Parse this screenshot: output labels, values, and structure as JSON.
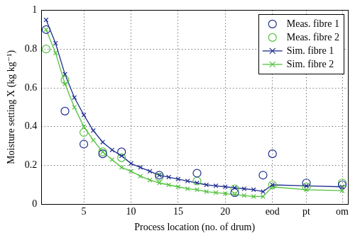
{
  "chart_data": {
    "type": "line",
    "x_label": "Process location (no. of drum)",
    "y_label": "Moisture setting X (kg kg⁻¹)",
    "x": [
      1,
      2,
      3,
      4,
      5,
      6,
      7,
      8,
      9,
      10,
      11,
      12,
      13,
      14,
      15,
      16,
      17,
      18,
      19,
      20,
      21,
      22,
      23,
      24,
      25,
      28.6,
      32.4
    ],
    "series": [
      {
        "name": "Meas. fibre 1",
        "color": "#1f2e8f",
        "type": "scatter",
        "marker": "circle",
        "values": [
          0.9,
          null,
          0.48,
          null,
          0.31,
          null,
          0.26,
          null,
          0.27,
          null,
          null,
          null,
          0.15,
          null,
          null,
          null,
          0.16,
          null,
          null,
          null,
          0.06,
          null,
          null,
          0.15,
          0.26,
          0.11,
          0.1
        ]
      },
      {
        "name": "Meas. fibre 2",
        "color": "#52c23c",
        "type": "scatter",
        "marker": "circle",
        "values": [
          0.8,
          null,
          0.64,
          null,
          0.37,
          null,
          0.27,
          null,
          0.24,
          null,
          null,
          null,
          0.14,
          null,
          null,
          null,
          0.12,
          null,
          null,
          null,
          0.08,
          null,
          null,
          null,
          0.1,
          0.09,
          0.11
        ]
      },
      {
        "name": "Sim. fibre 1",
        "color": "#1f2e8f",
        "marker": "x",
        "line_style": "solid",
        "values": [
          0.95,
          0.83,
          0.67,
          0.55,
          0.46,
          0.38,
          0.32,
          0.28,
          0.25,
          0.21,
          0.19,
          0.17,
          0.15,
          0.14,
          0.13,
          0.12,
          0.11,
          0.1,
          0.095,
          0.09,
          0.085,
          0.08,
          0.075,
          0.065,
          0.1,
          0.095,
          0.09
        ]
      },
      {
        "name": "Sim. fibre 2",
        "color": "#52c23c",
        "marker": "x",
        "line_style": "solid",
        "values": [
          0.9,
          0.78,
          0.62,
          0.5,
          0.4,
          0.33,
          0.27,
          0.23,
          0.19,
          0.17,
          0.145,
          0.125,
          0.11,
          0.1,
          0.09,
          0.08,
          0.075,
          0.065,
          0.06,
          0.055,
          0.05,
          0.045,
          0.04,
          0.04,
          0.09,
          0.075,
          0.07
        ]
      }
    ],
    "xlim": [
      0.5,
      33
    ],
    "xticks": [
      5,
      10,
      15,
      20,
      {
        "value": 25,
        "label": "eod"
      },
      {
        "value": 28.6,
        "label": "pt"
      },
      {
        "value": 32.4,
        "label": "om"
      }
    ],
    "ylim": [
      0,
      1
    ],
    "yticks": [
      0,
      0.2,
      0.4,
      0.6,
      0.8,
      1
    ],
    "grid": true,
    "legend": "northeast"
  }
}
